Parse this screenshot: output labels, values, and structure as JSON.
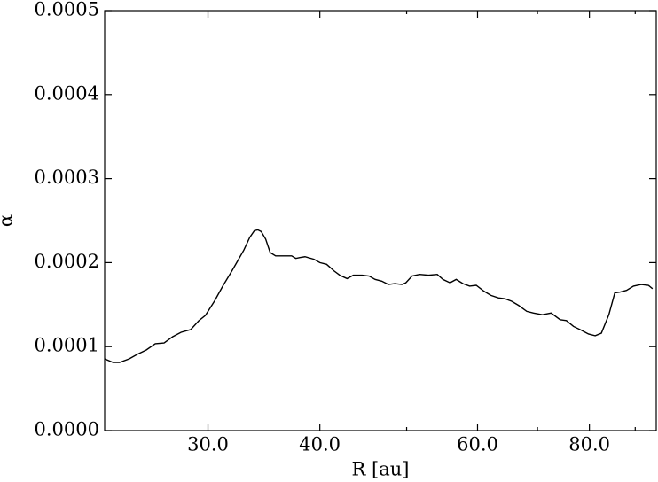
{
  "chart_data": {
    "type": "line",
    "xlabel": "R [au]",
    "ylabel": "α",
    "xscale": "log",
    "xlim": [
      23.0,
      95.0
    ],
    "ylim": [
      0,
      0.0005
    ],
    "xticks": [
      {
        "value": 30,
        "label": "30.0"
      },
      {
        "value": 40,
        "label": "40.0"
      },
      {
        "value": 60,
        "label": "60.0"
      },
      {
        "value": 80,
        "label": "80.0"
      }
    ],
    "xminorticks": [
      50,
      70,
      90
    ],
    "yticks": [
      {
        "value": 0,
        "label": "0.0000"
      },
      {
        "value": 0.0001,
        "label": "0.0001"
      },
      {
        "value": 0.0002,
        "label": "0.0002"
      },
      {
        "value": 0.0003,
        "label": "0.0003"
      },
      {
        "value": 0.0004,
        "label": "0.0004"
      },
      {
        "value": 0.0005,
        "label": "0.0005"
      }
    ],
    "color": "#000000",
    "x": [
      23.0,
      23.5,
      23.9,
      24.5,
      25.0,
      25.6,
      26.2,
      26.8,
      27.4,
      28.0,
      28.7,
      29.3,
      29.8,
      30.5,
      31.2,
      31.9,
      32.3,
      32.9,
      33.4,
      33.8,
      34.1,
      34.4,
      34.8,
      35.2,
      35.7,
      36.4,
      37.2,
      37.6,
      38.0,
      38.5,
      39.4,
      40.0,
      40.7,
      41.5,
      42.1,
      42.9,
      43.6,
      44.6,
      45.4,
      46.1,
      46.9,
      47.7,
      48.5,
      49.4,
      49.9,
      50.7,
      51.7,
      52.9,
      54.1,
      54.9,
      55.9,
      56.8,
      57.8,
      58.8,
      59.8,
      61.0,
      62.1,
      63.3,
      64.4,
      65.5,
      66.7,
      68.1,
      69.3,
      70.9,
      72.5,
      74.2,
      75.4,
      76.8,
      78.2,
      79.8,
      81.2,
      82.5,
      84.1,
      85.4,
      86.6,
      88.0,
      89.6,
      91.4,
      93.1,
      94.1
    ],
    "values": [
      8.54e-05,
      8.12e-05,
      8.12e-05,
      8.54e-05,
      9.07e-05,
      9.6e-05,
      0.0001034,
      0.0001044,
      0.0001118,
      0.0001171,
      0.0001203,
      0.0001308,
      0.0001371,
      0.000154,
      0.000173,
      0.00019,
      0.0002,
      0.000215,
      0.00023,
      0.000238,
      0.000239,
      0.000237,
      0.000228,
      0.000212,
      0.000208,
      0.000208,
      0.000208,
      0.000205,
      0.000206,
      0.000207,
      0.000204,
      0.0002,
      0.000198,
      0.00019,
      0.000185,
      0.000181,
      0.000185,
      0.000185,
      0.000184,
      0.00018,
      0.000178,
      0.000174,
      0.000175,
      0.000174,
      0.000176,
      0.000184,
      0.000186,
      0.000185,
      0.000186,
      0.00018,
      0.000176,
      0.00018,
      0.000175,
      0.000172,
      0.000173,
      0.000166,
      0.000161,
      0.000158,
      0.000157,
      0.000154,
      0.000149,
      0.000142,
      0.00014,
      0.000138,
      0.00014,
      0.000132,
      0.000131,
      0.000124,
      0.00012,
      0.000115,
      0.000113,
      0.000116,
      0.000138,
      0.000164,
      0.000165,
      0.000167,
      0.000172,
      0.000174,
      0.000173,
      0.000169
    ]
  }
}
